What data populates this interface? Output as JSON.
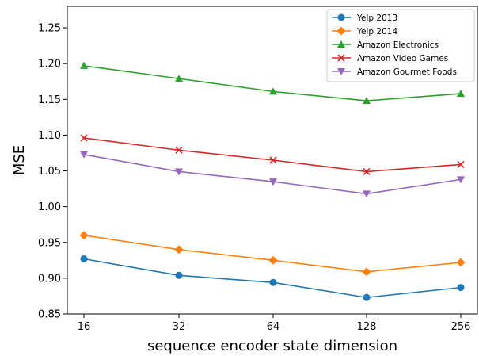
{
  "chart_data": {
    "type": "line",
    "title": "",
    "xlabel": "sequence encoder state dimension",
    "ylabel": "MSE",
    "categories": [
      "16",
      "32",
      "64",
      "128",
      "256"
    ],
    "ylim": [
      0.85,
      1.28
    ],
    "yticks": [
      0.85,
      0.9,
      0.95,
      1.0,
      1.05,
      1.1,
      1.15,
      1.2,
      1.25
    ],
    "ytick_labels": [
      "0.85",
      "0.90",
      "0.95",
      "1.00",
      "1.05",
      "1.10",
      "1.15",
      "1.20",
      "1.25"
    ],
    "grid": false,
    "legend_position": "top-right",
    "series": [
      {
        "name": "Yelp 2013",
        "color": "#1f77b4",
        "marker": "circle",
        "values": [
          0.927,
          0.904,
          0.894,
          0.873,
          0.887
        ]
      },
      {
        "name": "Yelp 2014",
        "color": "#ff7f0e",
        "marker": "diamond",
        "values": [
          0.96,
          0.94,
          0.925,
          0.909,
          0.922
        ]
      },
      {
        "name": "Amazon Electronics",
        "color": "#2ca02c",
        "marker": "triangle-up",
        "values": [
          1.197,
          1.179,
          1.161,
          1.148,
          1.158
        ]
      },
      {
        "name": "Amazon Video Games",
        "color": "#d62728",
        "marker": "x",
        "values": [
          1.096,
          1.079,
          1.065,
          1.049,
          1.059
        ]
      },
      {
        "name": "Amazon Gourmet Foods",
        "color": "#9467bd",
        "marker": "triangle-down",
        "values": [
          1.073,
          1.049,
          1.035,
          1.018,
          1.038
        ]
      }
    ]
  }
}
